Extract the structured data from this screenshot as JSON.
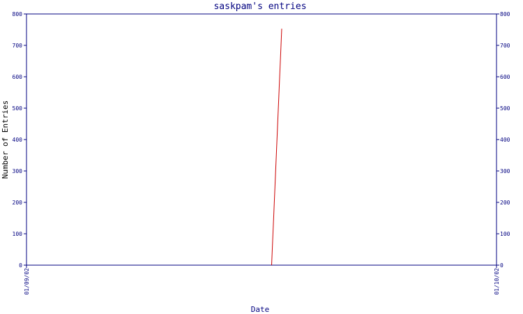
{
  "chart_data": {
    "type": "line",
    "title": "saskpam's entries",
    "xlabel": "Date",
    "ylabel": "Number of Entries",
    "x_tick_labels": [
      "01/09/02",
      "01/10/02"
    ],
    "y_ticks": [
      0,
      100,
      200,
      300,
      400,
      500,
      600,
      700,
      800
    ],
    "ylim": [
      0,
      800
    ],
    "xlim": [
      "2002-01-09",
      "2002-01-10"
    ],
    "grid": false,
    "legend": "none",
    "series": [
      {
        "x": [
          "2002-01-09 12:31",
          "2002-01-09 13:02"
        ],
        "values": [
          0,
          753
        ],
        "color": "#cc0000"
      }
    ]
  },
  "colors": {
    "axis": "#000080",
    "text": "#000080",
    "background": "#ffffff"
  }
}
